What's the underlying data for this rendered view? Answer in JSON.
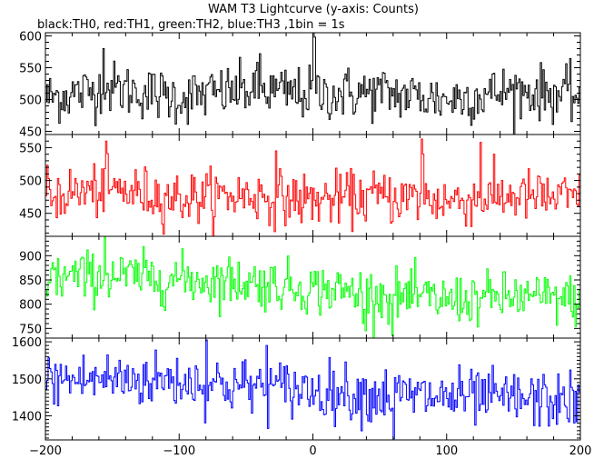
{
  "chart_data": {
    "type": "line",
    "title": "WAM T3 Lightcurve (y-axis: Counts)",
    "subtitle": "black:TH0, red:TH1, green:TH2, blue:TH3 ,1bin = 1s",
    "xlabel": "",
    "x_range": [
      -200,
      200
    ],
    "x_ticks": [
      -200,
      -100,
      0,
      100,
      200
    ],
    "bin_seconds": 1,
    "panels": [
      {
        "name": "TH0",
        "color": "#000000",
        "ylim": [
          445,
          605
        ],
        "y_ticks": [
          450,
          500,
          550,
          600
        ],
        "mean": 505,
        "noise_sd": 21,
        "trend": [
          {
            "x": -200,
            "y": 503
          },
          {
            "x": -150,
            "y": 518
          },
          {
            "x": -100,
            "y": 503
          },
          {
            "x": -50,
            "y": 515
          },
          {
            "x": 0,
            "y": 508
          },
          {
            "x": 50,
            "y": 511
          },
          {
            "x": 100,
            "y": 500
          },
          {
            "x": 150,
            "y": 514
          },
          {
            "x": 200,
            "y": 506
          }
        ],
        "spikes": [
          {
            "x": 0,
            "y": 605
          },
          {
            "x": 1,
            "y": 598
          },
          {
            "x": -157,
            "y": 580
          },
          {
            "x": -40,
            "y": 572
          }
        ]
      },
      {
        "name": "TH1",
        "color": "#ff0000",
        "ylim": [
          415,
          570
        ],
        "y_ticks": [
          450,
          500,
          550
        ],
        "mean": 472,
        "noise_sd": 20,
        "trend": [
          {
            "x": -200,
            "y": 478
          },
          {
            "x": -150,
            "y": 486
          },
          {
            "x": -100,
            "y": 473
          },
          {
            "x": -50,
            "y": 478
          },
          {
            "x": 0,
            "y": 470
          },
          {
            "x": 50,
            "y": 476
          },
          {
            "x": 100,
            "y": 469
          },
          {
            "x": 150,
            "y": 477
          },
          {
            "x": 200,
            "y": 471
          }
        ],
        "spikes": [
          {
            "x": -155,
            "y": 560
          },
          {
            "x": 81,
            "y": 563
          },
          {
            "x": 82,
            "y": 540
          },
          {
            "x": -28,
            "y": 545
          },
          {
            "x": 125,
            "y": 558
          }
        ]
      },
      {
        "name": "TH2",
        "color": "#00ff00",
        "ylim": [
          730,
          940
        ],
        "y_ticks": [
          750,
          800,
          850,
          900
        ],
        "mean": 830,
        "noise_sd": 26,
        "trend": [
          {
            "x": -200,
            "y": 855
          },
          {
            "x": -150,
            "y": 858
          },
          {
            "x": -100,
            "y": 852
          },
          {
            "x": -50,
            "y": 846
          },
          {
            "x": 0,
            "y": 832
          },
          {
            "x": 50,
            "y": 820
          },
          {
            "x": 100,
            "y": 808
          },
          {
            "x": 150,
            "y": 815
          },
          {
            "x": 200,
            "y": 808
          }
        ],
        "spikes": [
          {
            "x": -156,
            "y": 938
          },
          {
            "x": 59,
            "y": 735
          },
          {
            "x": 39,
            "y": 745
          }
        ]
      },
      {
        "name": "TH3",
        "color": "#0000ff",
        "ylim": [
          1335,
          1610
        ],
        "y_ticks": [
          1400,
          1500,
          1600
        ],
        "mean": 1465,
        "noise_sd": 38,
        "trend": [
          {
            "x": -200,
            "y": 1495
          },
          {
            "x": -150,
            "y": 1500
          },
          {
            "x": -100,
            "y": 1495
          },
          {
            "x": -50,
            "y": 1480
          },
          {
            "x": 0,
            "y": 1470
          },
          {
            "x": 50,
            "y": 1455
          },
          {
            "x": 100,
            "y": 1450
          },
          {
            "x": 150,
            "y": 1445
          },
          {
            "x": 200,
            "y": 1438
          }
        ],
        "spikes": [
          {
            "x": -80,
            "y": 1605
          },
          {
            "x": 60,
            "y": 1338
          },
          {
            "x": -35,
            "y": 1590
          }
        ]
      }
    ],
    "grid": false,
    "legend": "none"
  }
}
